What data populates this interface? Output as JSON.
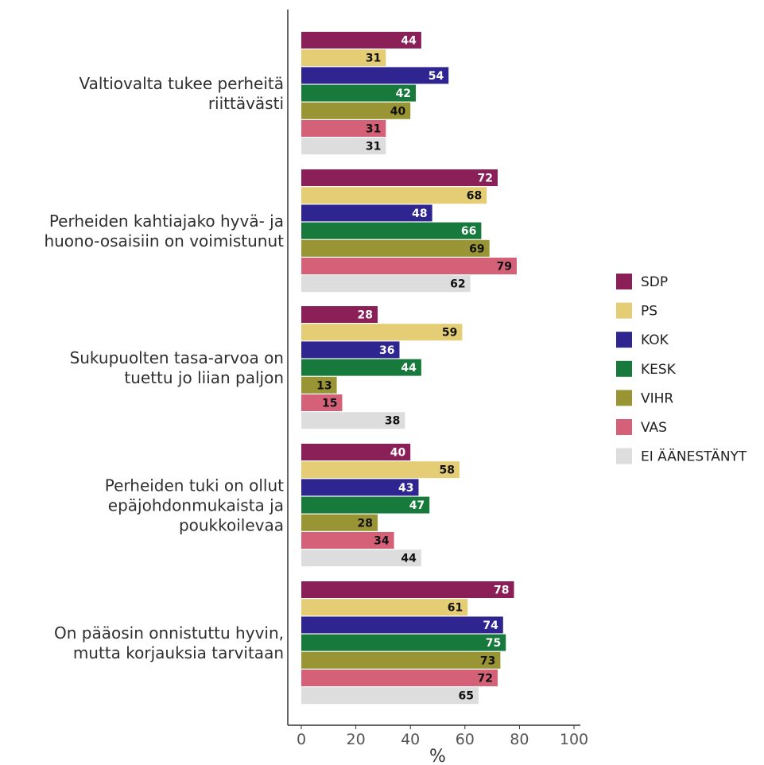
{
  "chart_data": {
    "type": "bar",
    "orientation": "horizontal",
    "categories": [
      "Valtiovalta tukee perheitä riittävästi",
      "Perheiden kahtiajako hyvä- ja huono-osaisiin on voimistunut",
      "Sukupuolten tasa-arvoa on tuettu jo liian paljon",
      "Perheiden tuki on ollut epäjohdonmukaista ja poukkoilevaa",
      "On pääosin onnistuttu hyvin, mutta korjauksia tarvitaan"
    ],
    "category_lines": [
      [
        "Valtiovalta tukee perheitä",
        "riittävästi"
      ],
      [
        "Perheiden kahtiajako hyvä- ja",
        "huono-osaisiin on voimistunut"
      ],
      [
        "Sukupuolten tasa-arvoa on",
        "tuettu jo liian paljon"
      ],
      [
        "Perheiden tuki on ollut",
        "epäjohdonmukaista ja",
        "poukkoilevaa"
      ],
      [
        "On pääosin onnistuttu hyvin,",
        "mutta korjauksia tarvitaan"
      ]
    ],
    "series": [
      {
        "name": "SDP",
        "color": "#8b1f57",
        "label_color": "#ffffff",
        "values": [
          44,
          72,
          28,
          40,
          78
        ]
      },
      {
        "name": "PS",
        "color": "#e5cd76",
        "label_color": "#111111",
        "values": [
          31,
          68,
          59,
          58,
          61
        ]
      },
      {
        "name": "KOK",
        "color": "#2f2590",
        "label_color": "#ffffff",
        "values": [
          54,
          48,
          36,
          43,
          74
        ]
      },
      {
        "name": "KESK",
        "color": "#177a3c",
        "label_color": "#ffffff",
        "values": [
          42,
          66,
          44,
          47,
          75
        ]
      },
      {
        "name": "VIHR",
        "color": "#9a9534",
        "label_color": "#111111",
        "values": [
          40,
          69,
          13,
          28,
          73
        ]
      },
      {
        "name": "VAS",
        "color": "#d46177",
        "label_color": "#111111",
        "values": [
          31,
          79,
          15,
          34,
          72
        ]
      },
      {
        "name": "EI ÄÄNESTÄNYT",
        "color": "#dddddd",
        "label_color": "#111111",
        "values": [
          31,
          62,
          38,
          44,
          65
        ]
      }
    ],
    "xlabel": "%",
    "xlim": [
      0,
      100
    ],
    "xticks": [
      0,
      20,
      40,
      60,
      80,
      100
    ],
    "legend_position": "right",
    "grid": false
  }
}
